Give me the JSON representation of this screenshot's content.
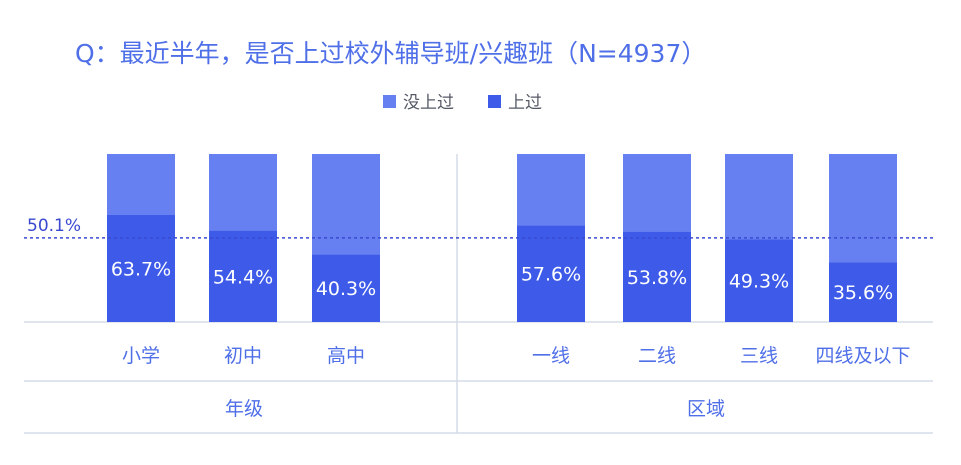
{
  "chart_data": {
    "type": "bar",
    "stacked": true,
    "title": "Q：最近半年，是否上过校外辅导班/兴趣班（N=4937）",
    "legend": {
      "placement": "top-center",
      "entries": [
        {
          "name": "没上过",
          "color": "#6680f2"
        },
        {
          "name": "上过",
          "color": "#3d5be8"
        }
      ]
    },
    "reference_line": {
      "value": 50.1,
      "label": "50.1%"
    },
    "ylim": [
      0,
      100
    ],
    "groups": [
      {
        "label": "年级",
        "categories": [
          "小学",
          "初中",
          "高中"
        ],
        "values": [
          63.7,
          54.4,
          40.3
        ],
        "value_labels": [
          "63.7%",
          "54.4%",
          "40.3%"
        ]
      },
      {
        "label": "区域",
        "categories": [
          "一线",
          "二线",
          "三线",
          "四线及以下"
        ],
        "values": [
          57.6,
          53.8,
          49.3,
          35.6
        ],
        "value_labels": [
          "57.6%",
          "53.8%",
          "49.3%",
          "35.6%"
        ]
      }
    ]
  }
}
